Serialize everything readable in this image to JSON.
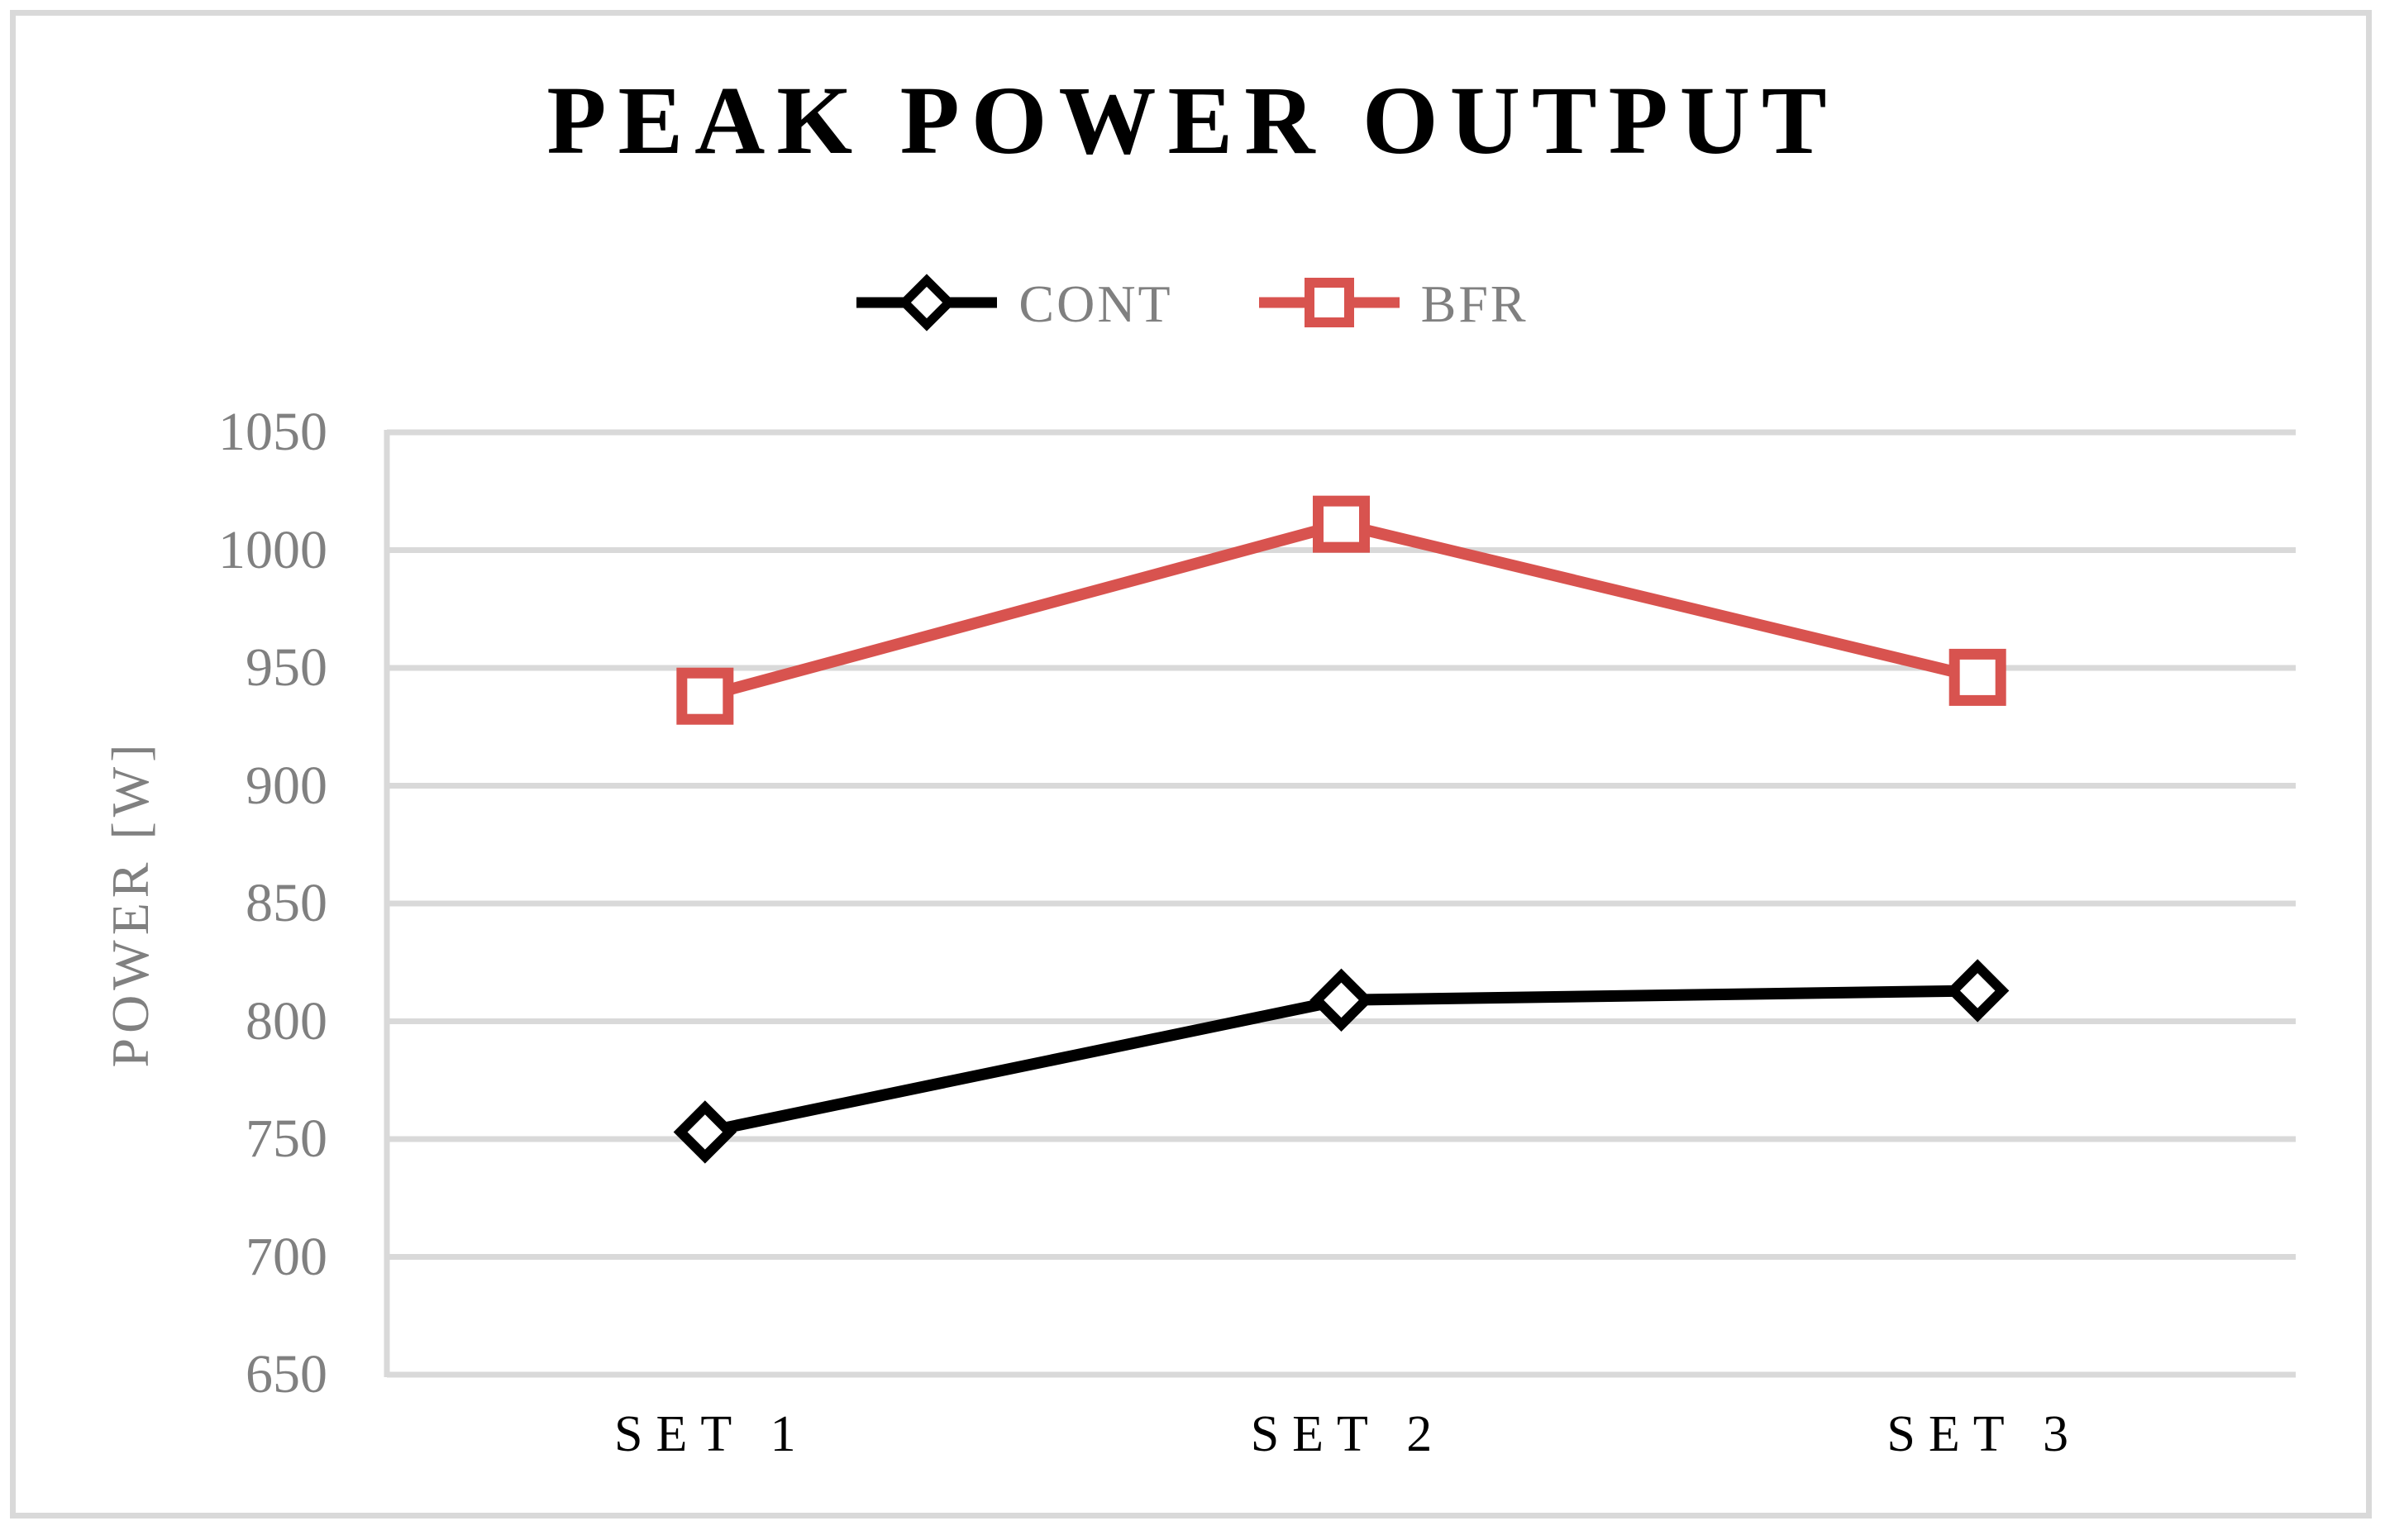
{
  "figure": {
    "background_color": "#FFFFFF",
    "border_color": "#D9D9D9"
  },
  "chart_data": {
    "type": "line",
    "title": "PEAK POWER OUTPUT",
    "categories": [
      "SET 1",
      "SET 2",
      "SET 3"
    ],
    "series": [
      {
        "name": "CONT",
        "values": [
          753,
          809,
          813
        ],
        "color": "#000000",
        "marker": "diamond"
      },
      {
        "name": "BFR",
        "values": [
          938,
          1011,
          946
        ],
        "color": "#D8534F",
        "marker": "square"
      }
    ],
    "xlabel": "",
    "ylabel": "POWER [W]",
    "ylim": [
      650,
      1050
    ],
    "yticks": [
      650,
      700,
      750,
      800,
      850,
      900,
      950,
      1000,
      1050
    ],
    "grid": true,
    "gridline_color": "#D9D9D9",
    "axis_line_color": "#D9D9D9",
    "tick_label_color": "#808080",
    "category_label_color": "#000000",
    "legend_position": "top-center",
    "legend_text_color": "#808080"
  }
}
